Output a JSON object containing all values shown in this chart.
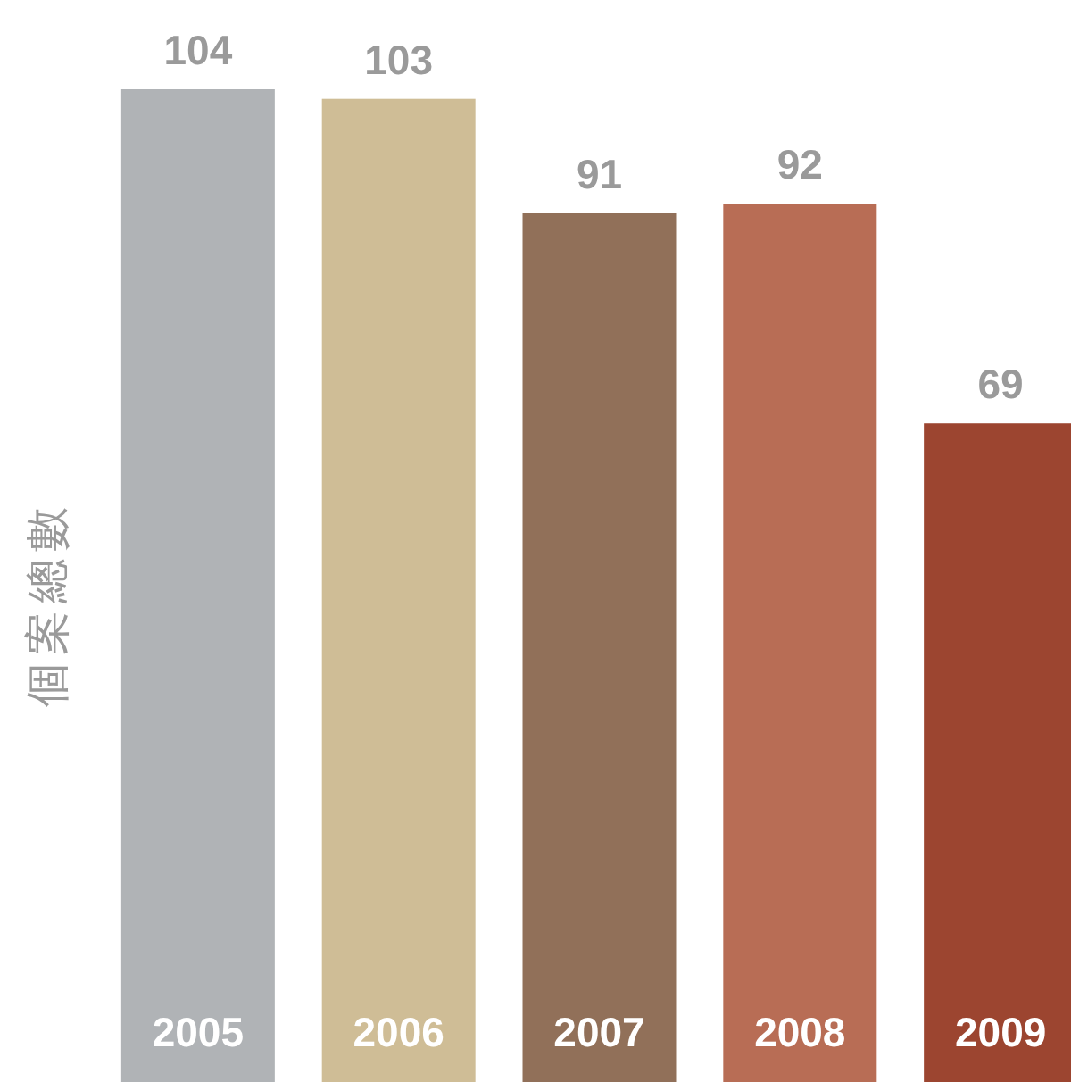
{
  "chart_data": {
    "type": "bar",
    "ylabel": "個案總數",
    "categories": [
      "2005",
      "2006",
      "2007",
      "2008",
      "2009"
    ],
    "values": [
      104,
      103,
      91,
      92,
      69
    ],
    "colors": [
      "#b0b3b6",
      "#cfbd96",
      "#917059",
      "#b86d55",
      "#9c4530"
    ],
    "data_labels": true
  }
}
